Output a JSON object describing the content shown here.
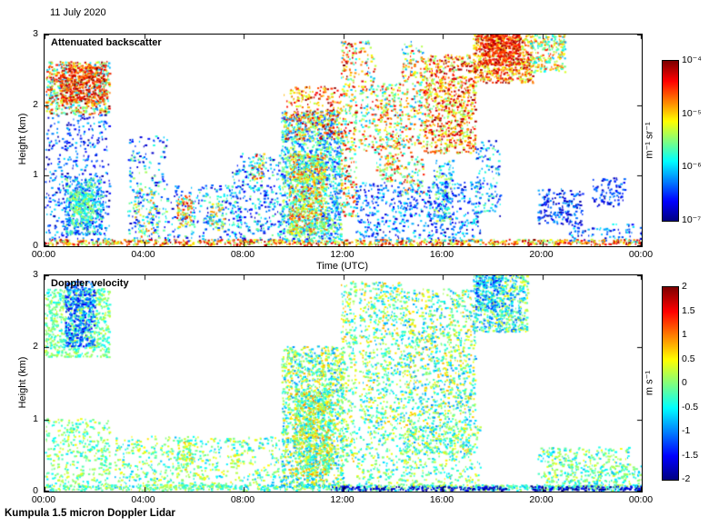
{
  "page": {
    "date_label": "11 July 2020",
    "footer_label": "Kumpula 1.5 micron Doppler Lidar"
  },
  "chart_data": [
    {
      "type": "heatmap",
      "title": "Attenuated backscatter",
      "xlabel": "Time (UTC)",
      "ylabel": "Height (km)",
      "x_ticks": [
        "00:00",
        "04:00",
        "08:00",
        "12:00",
        "16:00",
        "20:00",
        "00:00"
      ],
      "x_tick_hours": [
        0,
        4,
        8,
        12,
        16,
        20,
        24
      ],
      "x_range_hours": [
        0,
        24
      ],
      "y_ticks": [
        0,
        1,
        2,
        3
      ],
      "y_range_km": [
        0,
        3
      ],
      "grid": false,
      "colorbar": {
        "label": "m⁻¹ sr⁻¹",
        "ticks": [
          "10⁻⁴",
          "10⁻⁵",
          "10⁻⁶",
          "10⁻⁷"
        ],
        "scale": "log",
        "min": "1e-7",
        "max": "1e-4",
        "colormap": "jet"
      },
      "features": [
        {
          "name": "night-elevated-aerosol-layer",
          "t": [
            0.0,
            2.6
          ],
          "h": [
            1.85,
            2.6
          ],
          "density": 0.8,
          "v": [
            0.25,
            1.0
          ]
        },
        {
          "name": "night-elevated-layer-core",
          "t": [
            0.6,
            2.4
          ],
          "h": [
            2.0,
            2.55
          ],
          "density": 0.85,
          "v": [
            0.7,
            1.0
          ]
        },
        {
          "name": "night-low-speckle",
          "t": [
            0.0,
            2.6
          ],
          "h": [
            0.05,
            1.85
          ],
          "density": 0.22,
          "v": [
            0.02,
            0.35
          ]
        },
        {
          "name": "night-low-plume",
          "t": [
            0.8,
            2.3
          ],
          "h": [
            0.15,
            0.95
          ],
          "density": 0.8,
          "v": [
            0.15,
            0.55
          ]
        },
        {
          "name": "night-low-plume-core",
          "t": [
            1.0,
            1.9
          ],
          "h": [
            0.3,
            0.75
          ],
          "density": 0.9,
          "v": [
            0.35,
            0.6
          ]
        },
        {
          "name": "surface-return",
          "t": [
            0.0,
            24.0
          ],
          "h": [
            0.0,
            0.08
          ],
          "density": 1.0,
          "v": [
            0.45,
            1.0
          ]
        },
        {
          "name": "early-morning-speckle",
          "t": [
            3.3,
            4.9
          ],
          "h": [
            0.05,
            1.55
          ],
          "density": 0.18,
          "v": [
            0.05,
            0.55
          ]
        },
        {
          "name": "early-morning-patch",
          "t": [
            3.5,
            4.6
          ],
          "h": [
            0.1,
            0.8
          ],
          "density": 0.3,
          "v": [
            0.1,
            0.8
          ]
        },
        {
          "name": "morning-boundary-layer",
          "t": [
            4.9,
            7.9
          ],
          "h": [
            0.05,
            0.85
          ],
          "density": 0.22,
          "v": [
            0.05,
            0.5
          ]
        },
        {
          "name": "morning-bright-patch",
          "t": [
            5.3,
            5.9
          ],
          "h": [
            0.25,
            0.7
          ],
          "density": 0.75,
          "v": [
            0.3,
            0.95
          ]
        },
        {
          "name": "morning-patch-2",
          "t": [
            6.6,
            7.2
          ],
          "h": [
            0.2,
            0.6
          ],
          "density": 0.5,
          "v": [
            0.2,
            0.8
          ]
        },
        {
          "name": "mid-morning-speckle",
          "t": [
            7.5,
            9.5
          ],
          "h": [
            0.05,
            1.3
          ],
          "density": 0.28,
          "v": [
            0.05,
            0.5
          ]
        },
        {
          "name": "mid-morning-cloud",
          "t": [
            8.3,
            8.8
          ],
          "h": [
            0.9,
            1.3
          ],
          "density": 0.5,
          "v": [
            0.3,
            0.9
          ]
        },
        {
          "name": "midday-plume",
          "t": [
            9.5,
            11.9
          ],
          "h": [
            0.05,
            1.9
          ],
          "density": 0.75,
          "v": [
            0.12,
            0.6
          ]
        },
        {
          "name": "midday-plume-core",
          "t": [
            9.8,
            11.3
          ],
          "h": [
            0.15,
            1.3
          ],
          "density": 0.9,
          "v": [
            0.35,
            0.85
          ]
        },
        {
          "name": "midday-plume-cap",
          "t": [
            9.6,
            11.9
          ],
          "h": [
            1.5,
            2.25
          ],
          "density": 0.4,
          "v": [
            0.55,
            1.0
          ]
        },
        {
          "name": "noon-cloud-column",
          "t": [
            11.9,
            12.5
          ],
          "h": [
            0.4,
            2.9
          ],
          "density": 0.45,
          "v": [
            0.3,
            1.0
          ]
        },
        {
          "name": "afternoon-column-1",
          "t": [
            12.6,
            13.3
          ],
          "h": [
            1.3,
            2.9
          ],
          "density": 0.3,
          "v": [
            0.25,
            0.95
          ]
        },
        {
          "name": "afternoon-cloud-1",
          "t": [
            13.3,
            14.3
          ],
          "h": [
            0.9,
            2.3
          ],
          "density": 0.5,
          "v": [
            0.3,
            0.95
          ]
        },
        {
          "name": "afternoon-column-2",
          "t": [
            14.3,
            15.2
          ],
          "h": [
            0.7,
            2.9
          ],
          "density": 0.35,
          "v": [
            0.25,
            0.95
          ]
        },
        {
          "name": "afternoon-cloud-deck",
          "t": [
            15.2,
            17.3
          ],
          "h": [
            1.3,
            2.7
          ],
          "density": 0.65,
          "v": [
            0.45,
            1.0
          ]
        },
        {
          "name": "afternoon-low-speckle",
          "t": [
            12.5,
            17.5
          ],
          "h": [
            0.05,
            0.9
          ],
          "density": 0.3,
          "v": [
            0.03,
            0.4
          ]
        },
        {
          "name": "afternoon-low-patch",
          "t": [
            15.6,
            16.4
          ],
          "h": [
            0.3,
            1.2
          ],
          "density": 0.5,
          "v": [
            0.1,
            0.6
          ]
        },
        {
          "name": "evening-high-cloud",
          "t": [
            17.2,
            19.6
          ],
          "h": [
            2.3,
            3.0
          ],
          "density": 0.9,
          "v": [
            0.5,
            1.0
          ]
        },
        {
          "name": "evening-high-cloud-core",
          "t": [
            17.5,
            19.1
          ],
          "h": [
            2.55,
            3.0
          ],
          "density": 0.95,
          "v": [
            0.75,
            1.0
          ]
        },
        {
          "name": "evening-high-cloud-tail",
          "t": [
            19.5,
            20.9
          ],
          "h": [
            2.45,
            3.0
          ],
          "density": 0.7,
          "v": [
            0.3,
            0.85
          ]
        },
        {
          "name": "evening-mid-speckle",
          "t": [
            17.3,
            18.3
          ],
          "h": [
            0.4,
            1.5
          ],
          "density": 0.25,
          "v": [
            0.05,
            0.5
          ]
        },
        {
          "name": "night2-low-patch-1",
          "t": [
            19.8,
            21.6
          ],
          "h": [
            0.3,
            0.8
          ],
          "density": 0.45,
          "v": [
            0.03,
            0.3
          ]
        },
        {
          "name": "night2-low-patch-2",
          "t": [
            22.0,
            23.3
          ],
          "h": [
            0.55,
            0.95
          ],
          "density": 0.4,
          "v": [
            0.03,
            0.3
          ]
        },
        {
          "name": "night2-surface-speckle",
          "t": [
            21.0,
            24.0
          ],
          "h": [
            0.05,
            0.3
          ],
          "density": 0.25,
          "v": [
            0.03,
            0.4
          ]
        }
      ]
    },
    {
      "type": "heatmap",
      "title": "Doppler velocity",
      "xlabel": "",
      "ylabel": "Height (km)",
      "x_ticks": [
        "00:00",
        "04:00",
        "08:00",
        "12:00",
        "16:00",
        "20:00",
        "00:00"
      ],
      "x_tick_hours": [
        0,
        4,
        8,
        12,
        16,
        20,
        24
      ],
      "x_range_hours": [
        0,
        24
      ],
      "y_ticks": [
        0,
        1,
        2,
        3
      ],
      "y_range_km": [
        0,
        3
      ],
      "grid": false,
      "colorbar": {
        "label": "m s⁻¹",
        "ticks": [
          "2",
          "1.5",
          "1",
          "0.5",
          "0",
          "-0.5",
          "-1",
          "-1.5",
          "-2"
        ],
        "scale": "linear",
        "min": -2,
        "max": 2,
        "colormap": "jet"
      },
      "features": [
        {
          "name": "night-elevated-layer",
          "t": [
            0.0,
            2.6
          ],
          "h": [
            1.85,
            2.8
          ],
          "density": 0.75,
          "v": [
            0.35,
            0.6
          ]
        },
        {
          "name": "night-downdraft-blob",
          "t": [
            0.8,
            2.0
          ],
          "h": [
            2.0,
            2.9
          ],
          "density": 0.85,
          "v": [
            0.08,
            0.35
          ]
        },
        {
          "name": "night-low-speckle",
          "t": [
            0.0,
            2.6
          ],
          "h": [
            0.05,
            1.0
          ],
          "density": 0.35,
          "v": [
            0.35,
            0.62
          ]
        },
        {
          "name": "surface-return",
          "t": [
            0.0,
            24.0
          ],
          "h": [
            0.0,
            0.08
          ],
          "density": 1.0,
          "v": [
            0.3,
            0.6
          ]
        },
        {
          "name": "surface-dark-stripe-1",
          "t": [
            11.5,
            18.5
          ],
          "h": [
            0.0,
            0.06
          ],
          "density": 0.95,
          "v": [
            0.0,
            0.15
          ]
        },
        {
          "name": "surface-dark-stripe-2",
          "t": [
            19.5,
            24.0
          ],
          "h": [
            0.0,
            0.06
          ],
          "density": 0.95,
          "v": [
            0.0,
            0.15
          ]
        },
        {
          "name": "morning-boundary-layer",
          "t": [
            2.8,
            9.5
          ],
          "h": [
            0.05,
            0.75
          ],
          "density": 0.3,
          "v": [
            0.3,
            0.65
          ]
        },
        {
          "name": "morning-patch",
          "t": [
            5.3,
            5.9
          ],
          "h": [
            0.25,
            0.7
          ],
          "density": 0.6,
          "v": [
            0.35,
            0.7
          ]
        },
        {
          "name": "midday-plume",
          "t": [
            9.5,
            12.0
          ],
          "h": [
            0.05,
            2.0
          ],
          "density": 0.75,
          "v": [
            0.25,
            0.7
          ]
        },
        {
          "name": "midday-plume-core",
          "t": [
            10.0,
            11.5
          ],
          "h": [
            0.2,
            1.4
          ],
          "density": 0.85,
          "v": [
            0.3,
            0.75
          ]
        },
        {
          "name": "noon-cloud-column",
          "t": [
            11.9,
            12.5
          ],
          "h": [
            0.4,
            2.9
          ],
          "density": 0.4,
          "v": [
            0.3,
            0.7
          ]
        },
        {
          "name": "afternoon-columns-1",
          "t": [
            12.6,
            14.4
          ],
          "h": [
            0.9,
            2.9
          ],
          "density": 0.4,
          "v": [
            0.28,
            0.7
          ]
        },
        {
          "name": "afternoon-columns-2",
          "t": [
            14.4,
            17.3
          ],
          "h": [
            0.5,
            2.8
          ],
          "density": 0.45,
          "v": [
            0.25,
            0.7
          ]
        },
        {
          "name": "afternoon-low-speckle",
          "t": [
            12.5,
            17.5
          ],
          "h": [
            0.05,
            0.9
          ],
          "density": 0.3,
          "v": [
            0.3,
            0.65
          ]
        },
        {
          "name": "evening-high-cloud",
          "t": [
            17.2,
            19.4
          ],
          "h": [
            2.2,
            3.0
          ],
          "density": 0.85,
          "v": [
            0.2,
            0.65
          ]
        },
        {
          "name": "evening-high-downdraft",
          "t": [
            17.3,
            18.4
          ],
          "h": [
            2.5,
            3.0
          ],
          "density": 0.6,
          "v": [
            0.1,
            0.4
          ]
        },
        {
          "name": "night2-low-patch",
          "t": [
            19.8,
            23.5
          ],
          "h": [
            0.1,
            0.6
          ],
          "density": 0.4,
          "v": [
            0.3,
            0.62
          ]
        },
        {
          "name": "night2-surface-speckle",
          "t": [
            21.0,
            24.0
          ],
          "h": [
            0.05,
            0.35
          ],
          "density": 0.3,
          "v": [
            0.3,
            0.6
          ]
        }
      ]
    }
  ]
}
